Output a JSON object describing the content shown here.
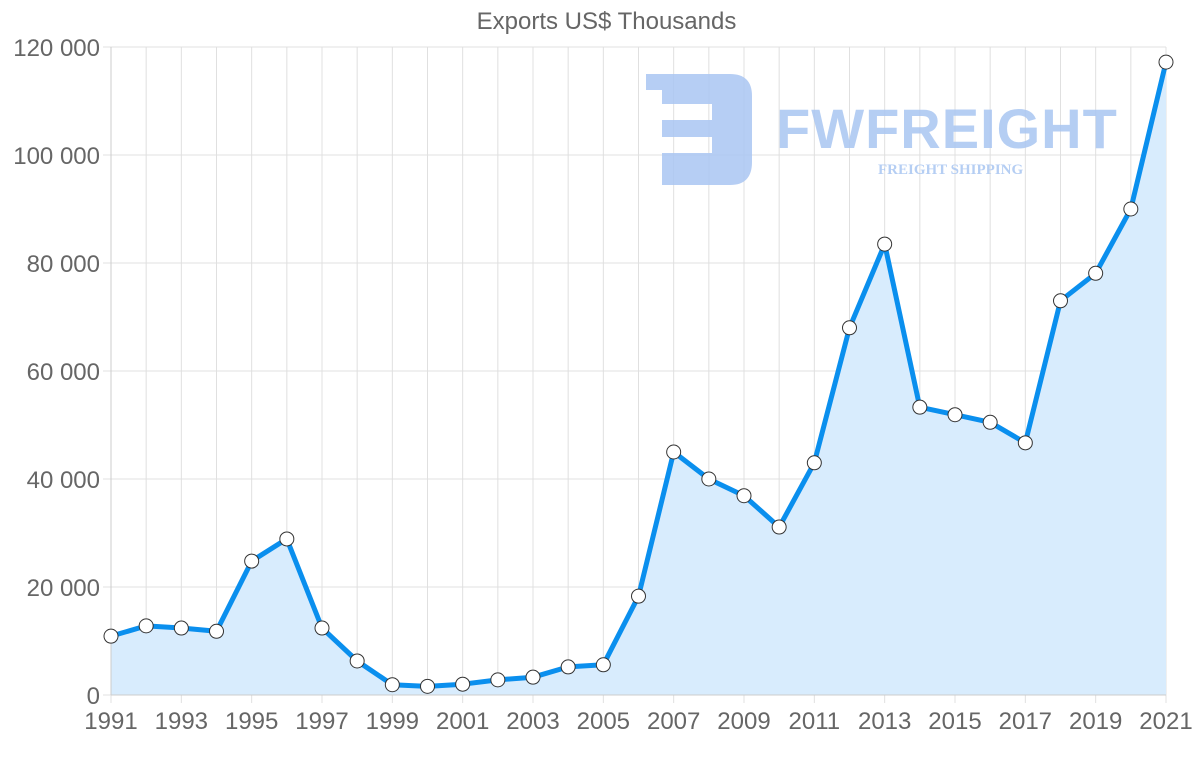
{
  "chart_data": {
    "type": "line",
    "title": "Exports US$ Thousands",
    "xlabel": "",
    "ylabel": "",
    "x": [
      1991,
      1992,
      1993,
      1994,
      1995,
      1996,
      1997,
      1998,
      1999,
      2000,
      2001,
      2002,
      2003,
      2004,
      2005,
      2006,
      2007,
      2008,
      2009,
      2010,
      2011,
      2012,
      2013,
      2014,
      2015,
      2016,
      2017,
      2018,
      2019,
      2020,
      2021
    ],
    "series": [
      {
        "name": "Exports US$ Thousands",
        "values": [
          10900,
          12800,
          12400,
          11800,
          24800,
          28900,
          12400,
          6300,
          1900,
          1600,
          2000,
          2800,
          3300,
          5200,
          5600,
          18300,
          45000,
          40000,
          36900,
          31100,
          43000,
          68000,
          83500,
          53300,
          51900,
          50500,
          46700,
          73000,
          78100,
          90000,
          117200
        ]
      }
    ],
    "ylim": [
      0,
      120000
    ],
    "yticks": [
      "0",
      "20 000",
      "40 000",
      "60 000",
      "80 000",
      "100 000",
      "120 000"
    ],
    "xticks": [
      "1991",
      "1993",
      "1995",
      "1997",
      "1999",
      "2001",
      "2003",
      "2005",
      "2007",
      "2009",
      "2011",
      "2013",
      "2015",
      "2017",
      "2019",
      "2021"
    ],
    "grid": true,
    "legend": "none",
    "fill": true,
    "colors": {
      "line": "#0a8fee",
      "fill": "#d8ecfd",
      "point_fill": "#ffffff",
      "point_stroke": "#333333",
      "grid": "#e0e0e0",
      "text": "#666666"
    }
  },
  "watermark": {
    "brand": "FWFREIGHT",
    "tagline": "FREIGHT SHIPPING",
    "color": "#a9c6f2"
  }
}
